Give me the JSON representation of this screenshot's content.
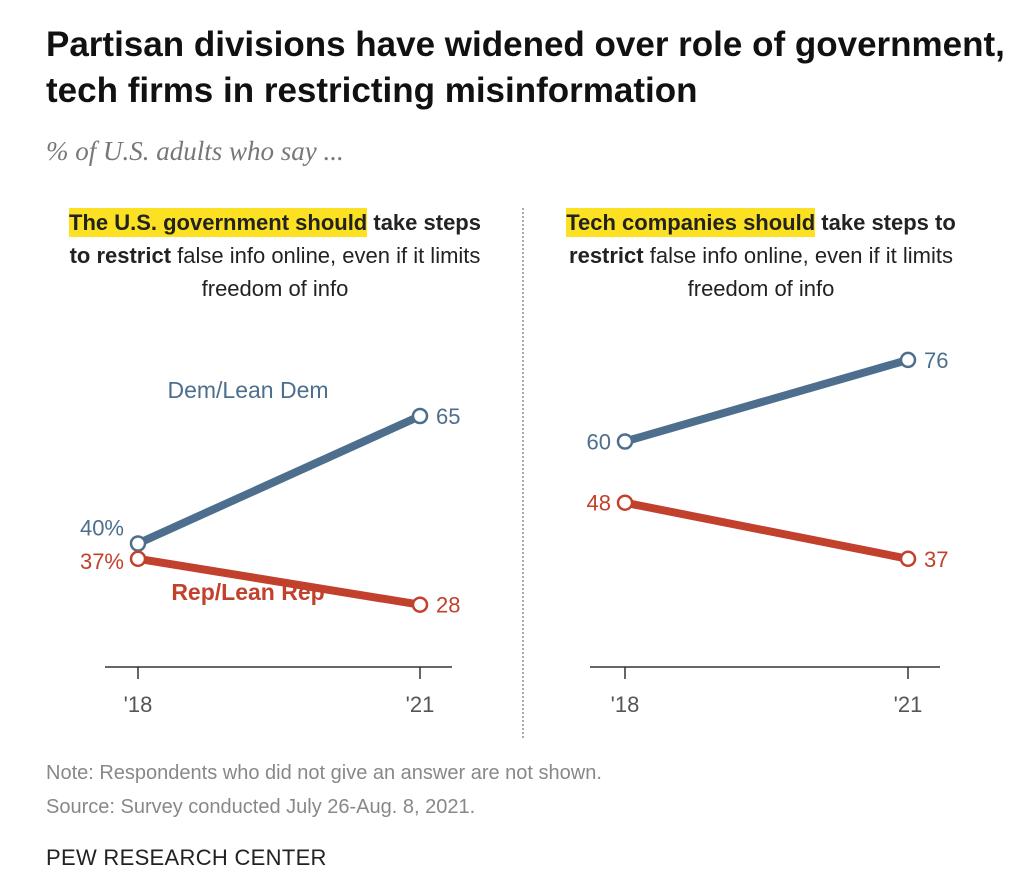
{
  "title": "Partisan divisions have widened over role of government, tech firms in restricting misinformation",
  "subtitle": "% of U.S. adults who say ...",
  "colors": {
    "dem": "#4d6f8d",
    "rep": "#c2412d",
    "highlight": "#fbe122"
  },
  "chart_data": [
    {
      "type": "line",
      "header": {
        "highlight": "The U.S. government should",
        "bold_rest": " take steps to restrict",
        "rest": " false info online, even if it limits freedom of info"
      },
      "x": [
        "'18",
        "'21"
      ],
      "ylim": [
        0,
        100
      ],
      "series": [
        {
          "name": "Dem/Lean Dem",
          "values": [
            40,
            65
          ],
          "labels": [
            "40%",
            "65"
          ]
        },
        {
          "name": "Rep/Lean Rep",
          "values": [
            37,
            28
          ],
          "labels": [
            "37%",
            "28"
          ]
        }
      ]
    },
    {
      "type": "line",
      "header": {
        "highlight": "Tech companies should",
        "bold_rest": " take steps to restrict",
        "rest": " false info online, even if it limits freedom of info"
      },
      "x": [
        "'18",
        "'21"
      ],
      "ylim": [
        0,
        100
      ],
      "series": [
        {
          "name": "",
          "values": [
            60,
            76
          ],
          "labels": [
            "60",
            "76"
          ]
        },
        {
          "name": "",
          "values": [
            48,
            37
          ],
          "labels": [
            "48",
            "37"
          ]
        }
      ]
    }
  ],
  "note": "Note: Respondents who did not give an answer are not shown.",
  "source": "Source: Survey conducted July 26-Aug. 8, 2021.",
  "brand": "PEW RESEARCH CENTER"
}
